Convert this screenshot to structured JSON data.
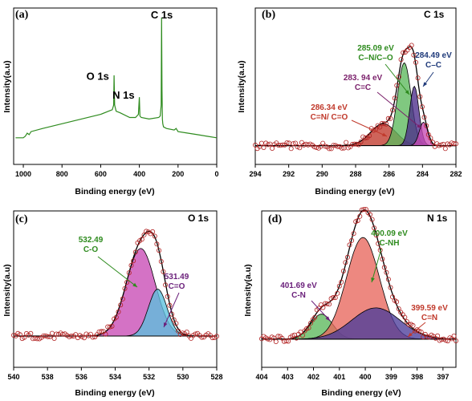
{
  "chart_data": [
    {
      "panel": "(a)",
      "type": "line",
      "title": "",
      "xlabel": "Binding energy (eV)",
      "ylabel": "Intensity(a.u)",
      "xlim": [
        1050,
        0
      ],
      "xticks": [
        1000,
        800,
        600,
        400,
        200,
        0
      ],
      "ylim": [
        0,
        100
      ],
      "line_color": "#2e8b1e",
      "peak_labels": [
        {
          "text": "C 1s",
          "x": 284,
          "y": 94
        },
        {
          "text": "O 1s",
          "x": 532,
          "y": 52
        },
        {
          "text": "N 1s",
          "x": 400,
          "y": 40
        }
      ],
      "series": [
        {
          "x": [
            1040,
            1000,
            990,
            980,
            970,
            960,
            900,
            800,
            700,
            600,
            560,
            540,
            533,
            531,
            528,
            520,
            500,
            450,
            420,
            405,
            400,
            397,
            390,
            350,
            300,
            292,
            287,
            285,
            283,
            281,
            279,
            275,
            260,
            220,
            210,
            200,
            150,
            100,
            50,
            0
          ],
          "y": [
            17,
            17,
            18,
            20,
            19,
            21,
            23,
            26,
            29,
            32,
            34,
            35,
            38,
            57,
            38,
            34,
            33,
            30,
            30,
            32,
            43,
            31,
            30,
            29,
            30,
            31,
            38,
            94,
            48,
            29,
            26,
            24,
            23,
            22,
            23,
            21,
            20,
            19,
            18,
            17
          ]
        }
      ]
    },
    {
      "panel": "(b)",
      "type": "line",
      "title": "C 1s",
      "xlabel": "Binding energy (eV)",
      "ylabel": "Intensity(a.u)",
      "xlim": [
        294,
        282
      ],
      "xticks": [
        294,
        292,
        290,
        288,
        286,
        284,
        282
      ],
      "ylim": [
        0,
        100
      ],
      "baseline": 12,
      "envelope_color": "#000000",
      "points_color": "#b22222",
      "peaks": [
        {
          "label": "286.34 eV",
          "sublabel": "C=N/ C=O",
          "center": 286.34,
          "amplitude": 14,
          "fwhm": 1.8,
          "color": "#c0392b",
          "label_color": "#c0392b"
        },
        {
          "label": "285.09 eV",
          "sublabel": "C–N/C–O",
          "center": 285.09,
          "amplitude": 53,
          "fwhm": 0.95,
          "color": "#5cb85c",
          "label_color": "#2e8b1e"
        },
        {
          "label": "284.49 eV",
          "sublabel": "C–C",
          "center": 284.49,
          "amplitude": 38,
          "fwhm": 0.65,
          "color": "#4b2c8a",
          "label_color": "#1f3a7a"
        },
        {
          "label": "283. 94 eV",
          "sublabel": "C=C",
          "center": 283.94,
          "amplitude": 15,
          "fwhm": 0.6,
          "color": "#c84ab5",
          "label_color": "#7a1f6a"
        }
      ]
    },
    {
      "panel": "(c)",
      "type": "line",
      "title": "O 1s",
      "xlabel": "Binding energy (eV)",
      "ylabel": "Intensity(a.u)",
      "xlim": [
        540,
        528
      ],
      "xticks": [
        540,
        538,
        536,
        534,
        532,
        530,
        528
      ],
      "ylim": [
        0,
        100
      ],
      "baseline": 20,
      "envelope_color": "#000000",
      "points_color": "#b22222",
      "peaks": [
        {
          "label": "532.49",
          "sublabel": "C-O",
          "center": 532.49,
          "amplitude": 56,
          "fwhm": 2.0,
          "color": "#c84ab5",
          "label_color": "#2e8b1e"
        },
        {
          "label": "531.49",
          "sublabel": "C=O",
          "center": 531.49,
          "amplitude": 30,
          "fwhm": 1.3,
          "color": "#5bc0de",
          "label_color": "#6a1f7a"
        }
      ]
    },
    {
      "panel": "(d)",
      "type": "line",
      "title": "N 1s",
      "xlabel": "Binding energy (eV)",
      "ylabel": "Intensity(a.u)",
      "xlim": [
        404,
        396.5
      ],
      "xticks": [
        404,
        403,
        402,
        401,
        400,
        399,
        398,
        397
      ],
      "ylim": [
        0,
        100
      ],
      "baseline": 18,
      "envelope_color": "#000000",
      "points_color": "#b22222",
      "peaks": [
        {
          "label": "401.69 eV",
          "sublabel": "C-N",
          "center": 401.69,
          "amplitude": 16,
          "fwhm": 1.0,
          "color": "#5cb85c",
          "label_color": "#6a1f7a"
        },
        {
          "label": "400.09 eV",
          "sublabel": "C-NH",
          "center": 400.09,
          "amplitude": 65,
          "fwhm": 1.5,
          "color": "#e8675c",
          "label_color": "#2e8b1e"
        },
        {
          "label": "399.59 eV",
          "sublabel": "C=N",
          "center": 399.59,
          "amplitude": 20,
          "fwhm": 2.2,
          "color": "#4b3c9a",
          "label_color": "#c0392b"
        }
      ]
    }
  ]
}
